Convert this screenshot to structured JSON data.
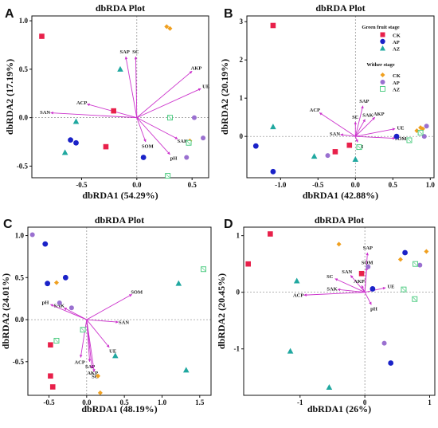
{
  "colors": {
    "arrow": "#cc33cc",
    "frame": "#111111",
    "grid": "#888888",
    "CK_green": "#e8204a",
    "AP_green": "#1a22c8",
    "AZ_green": "#20a8a0",
    "CK_wither": "#f0a020",
    "AP_wither": "#9a70d0",
    "AZ_wither": "#40c878"
  },
  "legend": {
    "title_green": "Green fruit stage",
    "title_wither": "Wither stage",
    "items": [
      "CK",
      "AP",
      "AZ"
    ]
  },
  "chart_data": [
    {
      "panel": "A",
      "type": "scatter",
      "title": "dbRDA Plot",
      "xlabel": "dbRDA1 (54.29%)",
      "ylabel": "dbRDA2 (17.19%)",
      "xlim": [
        -0.95,
        0.65
      ],
      "ylim": [
        -0.62,
        1.05
      ],
      "xticks": [
        {
          "v": -0.5,
          "t": "-0.5"
        },
        {
          "v": 0,
          "t": "0.0"
        },
        {
          "v": 0.5,
          "t": "0.5"
        }
      ],
      "yticks": [
        {
          "v": -0.5,
          "t": "-0.5"
        },
        {
          "v": 0,
          "t": "0.0"
        },
        {
          "v": 0.5,
          "t": "0.5"
        },
        {
          "v": 1.0,
          "t": "1.0"
        }
      ],
      "vectors": [
        {
          "name": "SAP",
          "x": -0.1,
          "y": 0.63
        },
        {
          "name": "SC",
          "x": -0.01,
          "y": 0.63
        },
        {
          "name": "AKP",
          "x": 0.5,
          "y": 0.48
        },
        {
          "name": "UE",
          "x": 0.58,
          "y": 0.3
        },
        {
          "name": "ACP",
          "x": -0.45,
          "y": 0.14
        },
        {
          "name": "SAN",
          "x": -0.78,
          "y": 0.05
        },
        {
          "name": "SOM",
          "x": 0.08,
          "y": -0.25
        },
        {
          "name": "SAK",
          "x": 0.37,
          "y": -0.22
        },
        {
          "name": "pH",
          "x": 0.3,
          "y": -0.38
        }
      ],
      "points": [
        {
          "group": "CK",
          "stage": "green",
          "x": -0.86,
          "y": 0.84
        },
        {
          "group": "CK",
          "stage": "green",
          "x": -0.21,
          "y": 0.07
        },
        {
          "group": "CK",
          "stage": "green",
          "x": -0.28,
          "y": -0.3
        },
        {
          "group": "AP",
          "stage": "green",
          "x": -0.6,
          "y": -0.23
        },
        {
          "group": "AP",
          "stage": "green",
          "x": -0.55,
          "y": -0.26
        },
        {
          "group": "AP",
          "stage": "green",
          "x": 0.06,
          "y": -0.41
        },
        {
          "group": "AZ",
          "stage": "green",
          "x": -0.55,
          "y": -0.04
        },
        {
          "group": "AZ",
          "stage": "green",
          "x": -0.65,
          "y": -0.36
        },
        {
          "group": "AZ",
          "stage": "green",
          "x": -0.15,
          "y": 0.5
        },
        {
          "group": "CK",
          "stage": "wither",
          "x": 0.27,
          "y": 0.94
        },
        {
          "group": "CK",
          "stage": "wither",
          "x": 0.3,
          "y": 0.92
        },
        {
          "group": "CK",
          "stage": "wither",
          "x": 0.48,
          "y": -0.24
        },
        {
          "group": "AP",
          "stage": "wither",
          "x": 0.52,
          "y": 0.0
        },
        {
          "group": "AP",
          "stage": "wither",
          "x": 0.6,
          "y": -0.21
        },
        {
          "group": "AP",
          "stage": "wither",
          "x": 0.45,
          "y": -0.41
        },
        {
          "group": "AZ",
          "stage": "wither",
          "x": 0.3,
          "y": 0.0
        },
        {
          "group": "AZ",
          "stage": "wither",
          "x": 0.47,
          "y": -0.26
        },
        {
          "group": "AZ",
          "stage": "wither",
          "x": 0.28,
          "y": -0.6
        }
      ]
    },
    {
      "panel": "B",
      "type": "scatter",
      "title": "dbRDA Plot",
      "xlabel": "dbRDA1 (42.88%)",
      "ylabel": "dbRDA2 (20.19%)",
      "xlim": [
        -1.45,
        1.05
      ],
      "ylim": [
        -1.08,
        3.15
      ],
      "xticks": [
        {
          "v": -1.0,
          "t": "-1.0"
        },
        {
          "v": -0.5,
          "t": "-0.5"
        },
        {
          "v": 0,
          "t": "0.0"
        },
        {
          "v": 0.5,
          "t": "0.5"
        },
        {
          "v": 1.0,
          "t": "1.0"
        }
      ],
      "yticks": [
        {
          "v": 0,
          "t": "0"
        },
        {
          "v": 1,
          "t": "1"
        },
        {
          "v": 2,
          "t": "2"
        },
        {
          "v": 3,
          "t": "3"
        }
      ],
      "vectors": [
        {
          "name": "SAP",
          "x": 0.1,
          "y": 0.8
        },
        {
          "name": "ACP",
          "x": -0.48,
          "y": 0.62
        },
        {
          "name": "SAK",
          "x": 0.13,
          "y": 0.45
        },
        {
          "name": "AKP",
          "x": 0.26,
          "y": 0.5
        },
        {
          "name": "SC",
          "x": 0.0,
          "y": 0.38
        },
        {
          "name": "UE",
          "x": 0.53,
          "y": 0.2
        },
        {
          "name": "SAN",
          "x": -0.2,
          "y": 0.05
        },
        {
          "name": "SOM",
          "x": 0.53,
          "y": -0.05
        },
        {
          "name": "pH",
          "x": 0.03,
          "y": -0.15
        }
      ],
      "points": [
        {
          "group": "CK",
          "stage": "green",
          "x": -1.1,
          "y": 2.9
        },
        {
          "group": "CK",
          "stage": "green",
          "x": -0.27,
          "y": -0.4
        },
        {
          "group": "CK",
          "stage": "green",
          "x": -0.08,
          "y": -0.23
        },
        {
          "group": "AP",
          "stage": "green",
          "x": -1.33,
          "y": -0.25
        },
        {
          "group": "AP",
          "stage": "green",
          "x": -1.1,
          "y": -0.92
        },
        {
          "group": "AP",
          "stage": "green",
          "x": 0.55,
          "y": 0.0
        },
        {
          "group": "AZ",
          "stage": "green",
          "x": -1.1,
          "y": 0.25
        },
        {
          "group": "AZ",
          "stage": "green",
          "x": -0.55,
          "y": -0.52
        },
        {
          "group": "AZ",
          "stage": "green",
          "x": 0.0,
          "y": -0.6
        },
        {
          "group": "CK",
          "stage": "wither",
          "x": 0.82,
          "y": 0.15
        },
        {
          "group": "CK",
          "stage": "wither",
          "x": 0.87,
          "y": 0.23
        },
        {
          "group": "CK",
          "stage": "wither",
          "x": 0.9,
          "y": 0.2
        },
        {
          "group": "AP",
          "stage": "wither",
          "x": -0.37,
          "y": -0.5
        },
        {
          "group": "AP",
          "stage": "wither",
          "x": 0.92,
          "y": 0.0
        },
        {
          "group": "AP",
          "stage": "wither",
          "x": 0.95,
          "y": 0.27
        },
        {
          "group": "AZ",
          "stage": "wither",
          "x": 0.05,
          "y": -0.28
        },
        {
          "group": "AZ",
          "stage": "wither",
          "x": 0.72,
          "y": -0.1
        },
        {
          "group": "AZ",
          "stage": "wither",
          "x": 0.87,
          "y": 0.1
        }
      ]
    },
    {
      "panel": "C",
      "type": "scatter",
      "title": "dbRDA Plot",
      "xlabel": "dbRDA1 (48.19%)",
      "ylabel": "dbRDA2 (24.01%)",
      "xlim": [
        -0.78,
        1.65
      ],
      "ylim": [
        -0.9,
        1.1
      ],
      "xticks": [
        {
          "v": -0.5,
          "t": "-0.5"
        },
        {
          "v": 0,
          "t": "0.0"
        },
        {
          "v": 0.5,
          "t": "0.5"
        },
        {
          "v": 1.0,
          "t": "1.0"
        },
        {
          "v": 1.5,
          "t": "1.5"
        }
      ],
      "yticks": [
        {
          "v": -0.5,
          "t": "-0.5"
        },
        {
          "v": 0,
          "t": "0.0"
        },
        {
          "v": 0.5,
          "t": "0.5"
        },
        {
          "v": 1.0,
          "t": "1.0"
        }
      ],
      "vectors": [
        {
          "name": "SOM",
          "x": 0.6,
          "y": 0.3
        },
        {
          "name": "pH",
          "x": -0.48,
          "y": 0.18
        },
        {
          "name": "SAK",
          "x": -0.3,
          "y": 0.14
        },
        {
          "name": "SAN",
          "x": 0.42,
          "y": -0.03
        },
        {
          "name": "UE",
          "x": 0.3,
          "y": -0.33
        },
        {
          "name": "ACP",
          "x": -0.08,
          "y": -0.45
        },
        {
          "name": "SAP",
          "x": 0.04,
          "y": -0.5
        },
        {
          "name": "AKP",
          "x": 0.07,
          "y": -0.58
        },
        {
          "name": "SC",
          "x": 0.1,
          "y": -0.62
        }
      ],
      "points": [
        {
          "group": "CK",
          "stage": "green",
          "x": -0.48,
          "y": -0.3
        },
        {
          "group": "CK",
          "stage": "green",
          "x": -0.48,
          "y": -0.67
        },
        {
          "group": "CK",
          "stage": "green",
          "x": -0.45,
          "y": -0.8
        },
        {
          "group": "AP",
          "stage": "green",
          "x": -0.55,
          "y": 0.9
        },
        {
          "group": "AP",
          "stage": "green",
          "x": -0.52,
          "y": 0.43
        },
        {
          "group": "AP",
          "stage": "green",
          "x": -0.28,
          "y": 0.5
        },
        {
          "group": "AZ",
          "stage": "green",
          "x": 1.22,
          "y": 0.43
        },
        {
          "group": "AZ",
          "stage": "green",
          "x": 0.38,
          "y": -0.43
        },
        {
          "group": "AZ",
          "stage": "green",
          "x": 1.32,
          "y": -0.6
        },
        {
          "group": "CK",
          "stage": "wither",
          "x": -0.4,
          "y": 0.44
        },
        {
          "group": "CK",
          "stage": "wither",
          "x": 0.18,
          "y": -0.87
        },
        {
          "group": "CK",
          "stage": "wither",
          "x": 0.15,
          "y": -0.67
        },
        {
          "group": "AP",
          "stage": "wither",
          "x": -0.72,
          "y": 1.01
        },
        {
          "group": "AP",
          "stage": "wither",
          "x": -0.2,
          "y": 0.14
        },
        {
          "group": "AP",
          "stage": "wither",
          "x": -0.36,
          "y": 0.2
        },
        {
          "group": "AZ",
          "stage": "wither",
          "x": 1.55,
          "y": 0.6
        },
        {
          "group": "AZ",
          "stage": "wither",
          "x": -0.4,
          "y": -0.25
        },
        {
          "group": "AZ",
          "stage": "wither",
          "x": -0.05,
          "y": -0.12
        }
      ]
    },
    {
      "panel": "D",
      "type": "scatter",
      "title": "dbRDA Plot",
      "xlabel": "dbRDA1 (26%)",
      "ylabel": "dbRDA2 (20.45%)",
      "xlim": [
        -1.87,
        1.08
      ],
      "ylim": [
        -1.82,
        1.15
      ],
      "xticks": [
        {
          "v": -1,
          "t": "-1"
        },
        {
          "v": 0,
          "t": "0"
        },
        {
          "v": 1,
          "t": "1"
        }
      ],
      "yticks": [
        {
          "v": -1,
          "t": "-1"
        },
        {
          "v": 0,
          "t": "0"
        },
        {
          "v": 1,
          "t": "1"
        }
      ],
      "vectors": [
        {
          "name": "SAP",
          "x": 0.04,
          "y": 0.7
        },
        {
          "name": "SOM",
          "x": 0.03,
          "y": 0.44
        },
        {
          "name": "SAN",
          "x": -0.22,
          "y": 0.3
        },
        {
          "name": "SC",
          "x": -0.46,
          "y": 0.24
        },
        {
          "name": "AKP",
          "x": -0.05,
          "y": 0.12
        },
        {
          "name": "SAK",
          "x": -0.42,
          "y": 0.05
        },
        {
          "name": "UE",
          "x": 0.32,
          "y": 0.08
        },
        {
          "name": "ACP",
          "x": -0.94,
          "y": -0.05
        },
        {
          "name": "pH",
          "x": 0.1,
          "y": -0.22
        }
      ],
      "points": [
        {
          "group": "CK",
          "stage": "green",
          "x": -1.8,
          "y": 0.5
        },
        {
          "group": "CK",
          "stage": "green",
          "x": -1.46,
          "y": 1.03
        },
        {
          "group": "CK",
          "stage": "green",
          "x": -0.05,
          "y": 0.33
        },
        {
          "group": "AP",
          "stage": "green",
          "x": 0.62,
          "y": 0.7
        },
        {
          "group": "AP",
          "stage": "green",
          "x": 0.4,
          "y": -1.25
        },
        {
          "group": "AP",
          "stage": "green",
          "x": 0.12,
          "y": 0.06
        },
        {
          "group": "AZ",
          "stage": "green",
          "x": -1.05,
          "y": 0.2
        },
        {
          "group": "AZ",
          "stage": "green",
          "x": -1.15,
          "y": -1.04
        },
        {
          "group": "AZ",
          "stage": "green",
          "x": -0.55,
          "y": -1.68
        },
        {
          "group": "CK",
          "stage": "wither",
          "x": -0.4,
          "y": 0.85
        },
        {
          "group": "CK",
          "stage": "wither",
          "x": 0.55,
          "y": 0.58
        },
        {
          "group": "CK",
          "stage": "wither",
          "x": 0.95,
          "y": 0.72
        },
        {
          "group": "AP",
          "stage": "wither",
          "x": 0.3,
          "y": -0.9
        },
        {
          "group": "AP",
          "stage": "wither",
          "x": 0.05,
          "y": 0.45
        },
        {
          "group": "AP",
          "stage": "wither",
          "x": 0.85,
          "y": 0.48
        },
        {
          "group": "AZ",
          "stage": "wither",
          "x": 0.6,
          "y": 0.05
        },
        {
          "group": "AZ",
          "stage": "wither",
          "x": 0.77,
          "y": -0.12
        },
        {
          "group": "AZ",
          "stage": "wither",
          "x": 0.78,
          "y": 0.5
        }
      ]
    }
  ]
}
